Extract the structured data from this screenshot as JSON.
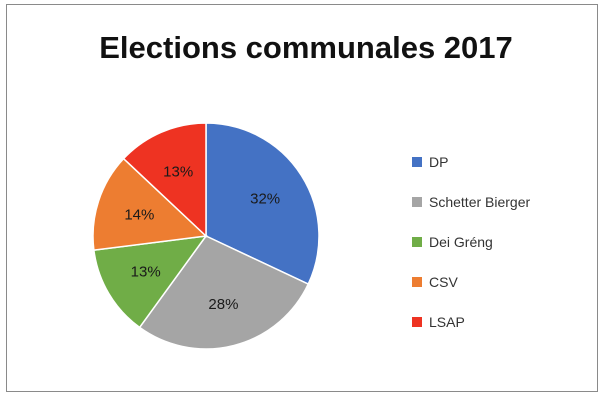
{
  "chart_data": {
    "type": "pie",
    "title": "Elections communales 2017",
    "legend_position": "right",
    "start_angle": "12 o'clock",
    "direction": "clockwise",
    "categories": [
      "DP",
      "Schetter Bierger",
      "Dei Gréng",
      "CSV",
      "LSAP"
    ],
    "values": [
      32,
      28,
      13,
      14,
      13
    ],
    "labels": [
      "32%",
      "28%",
      "13%",
      "14%",
      "13%"
    ],
    "colors": [
      "#4472C4",
      "#A5A5A5",
      "#70AD47",
      "#ED7D31",
      "#EE3322"
    ]
  }
}
